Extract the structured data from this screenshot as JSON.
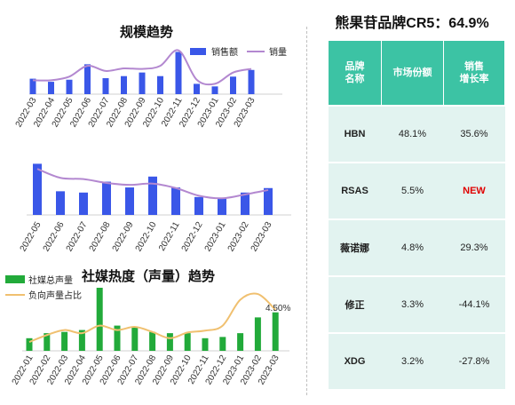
{
  "chart_data": [
    {
      "type": "bar+line",
      "title": "规模趋势",
      "categories": [
        "2022-03",
        "2022-04",
        "2022-05",
        "2022-06",
        "2022-07",
        "2022-08",
        "2022-09",
        "2022-10",
        "2022-11",
        "2022-12",
        "2023-01",
        "2023-02",
        "2023-03"
      ],
      "series": [
        {
          "name": "销售额",
          "kind": "bar",
          "color": "#3a57e8",
          "values": [
            0.3,
            0.24,
            0.28,
            0.58,
            0.31,
            0.35,
            0.42,
            0.35,
            0.82,
            0.2,
            0.15,
            0.34,
            0.47
          ]
        },
        {
          "name": "销量",
          "kind": "line",
          "color": "#b388d0",
          "values": [
            0.27,
            0.27,
            0.34,
            0.55,
            0.45,
            0.5,
            0.49,
            0.55,
            0.85,
            0.28,
            0.2,
            0.42,
            0.49
          ]
        }
      ],
      "legend": "top-right"
    },
    {
      "type": "bar+line",
      "categories": [
        "2022-05",
        "2022-06",
        "2022-07",
        "2022-08",
        "2022-09",
        "2022-10",
        "2022-11",
        "2022-12",
        "2023-01",
        "2023-02",
        "2023-03"
      ],
      "series": [
        {
          "kind": "bar",
          "color": "#3a57e8",
          "values": [
            0.8,
            0.37,
            0.35,
            0.52,
            0.43,
            0.6,
            0.43,
            0.28,
            0.27,
            0.35,
            0.42
          ]
        },
        {
          "kind": "line",
          "color": "#b388d0",
          "values": [
            0.72,
            0.58,
            0.56,
            0.5,
            0.47,
            0.49,
            0.42,
            0.3,
            0.26,
            0.32,
            0.39
          ]
        }
      ]
    },
    {
      "type": "bar+line",
      "title": "社媒热度（声量）趋势",
      "categories": [
        "2022-01",
        "2022-02",
        "2022-03",
        "2022-04",
        "2022-05",
        "2022-06",
        "2022-07",
        "2022-08",
        "2022-09",
        "2022-10",
        "2022-11",
        "2022-12",
        "2023-01",
        "2023-02",
        "2023-03"
      ],
      "series": [
        {
          "name": "社媒总声量",
          "kind": "bar",
          "color": "#22aa3a",
          "values": [
            0.2,
            0.28,
            0.3,
            0.33,
            1.0,
            0.4,
            0.38,
            0.3,
            0.28,
            0.28,
            0.2,
            0.22,
            0.28,
            0.53,
            0.61
          ]
        },
        {
          "name": "负向声量占比",
          "kind": "line",
          "color": "#f0c070",
          "values": [
            0.14,
            0.25,
            0.33,
            0.28,
            0.4,
            0.33,
            0.38,
            0.3,
            0.2,
            0.29,
            0.32,
            0.4,
            0.81,
            0.9,
            0.65
          ]
        }
      ],
      "annotations": [
        "4.50%"
      ],
      "legend": "top-left"
    },
    {
      "type": "table",
      "title": "熊果苷品牌CR5：64.9%",
      "columns": [
        "品牌名称",
        "市场份额",
        "销售增长率"
      ],
      "rows": [
        [
          "HBN",
          "48.1%",
          "35.6%"
        ],
        [
          "RSAS",
          "5.5%",
          "NEW"
        ],
        [
          "薇诺娜",
          "4.8%",
          "29.3%"
        ],
        [
          "修正",
          "3.3%",
          "-44.1%"
        ],
        [
          "XDG",
          "3.2%",
          "-27.8%"
        ]
      ]
    }
  ],
  "table": {
    "title": "熊果苷品牌CR5：64.9%",
    "header_lines": [
      [
        "品牌",
        "名称"
      ],
      [
        "市场份额"
      ],
      [
        "销售",
        "增长率"
      ]
    ],
    "rows": [
      {
        "brand": "HBN",
        "share": "48.1%",
        "growth": "35.6%",
        "highlight": false
      },
      {
        "brand": "RSAS",
        "share": "5.5%",
        "growth": "NEW",
        "highlight": true
      },
      {
        "brand": "薇诺娜",
        "share": "4.8%",
        "growth": "29.3%",
        "highlight": false
      },
      {
        "brand": "修正",
        "share": "3.3%",
        "growth": "-44.1%",
        "highlight": false
      },
      {
        "brand": "XDG",
        "share": "3.2%",
        "growth": "-27.8%",
        "highlight": false
      }
    ],
    "header_color": "#3cc3a4",
    "row_color": "#e2f3f0",
    "new_color": "#e00000"
  }
}
